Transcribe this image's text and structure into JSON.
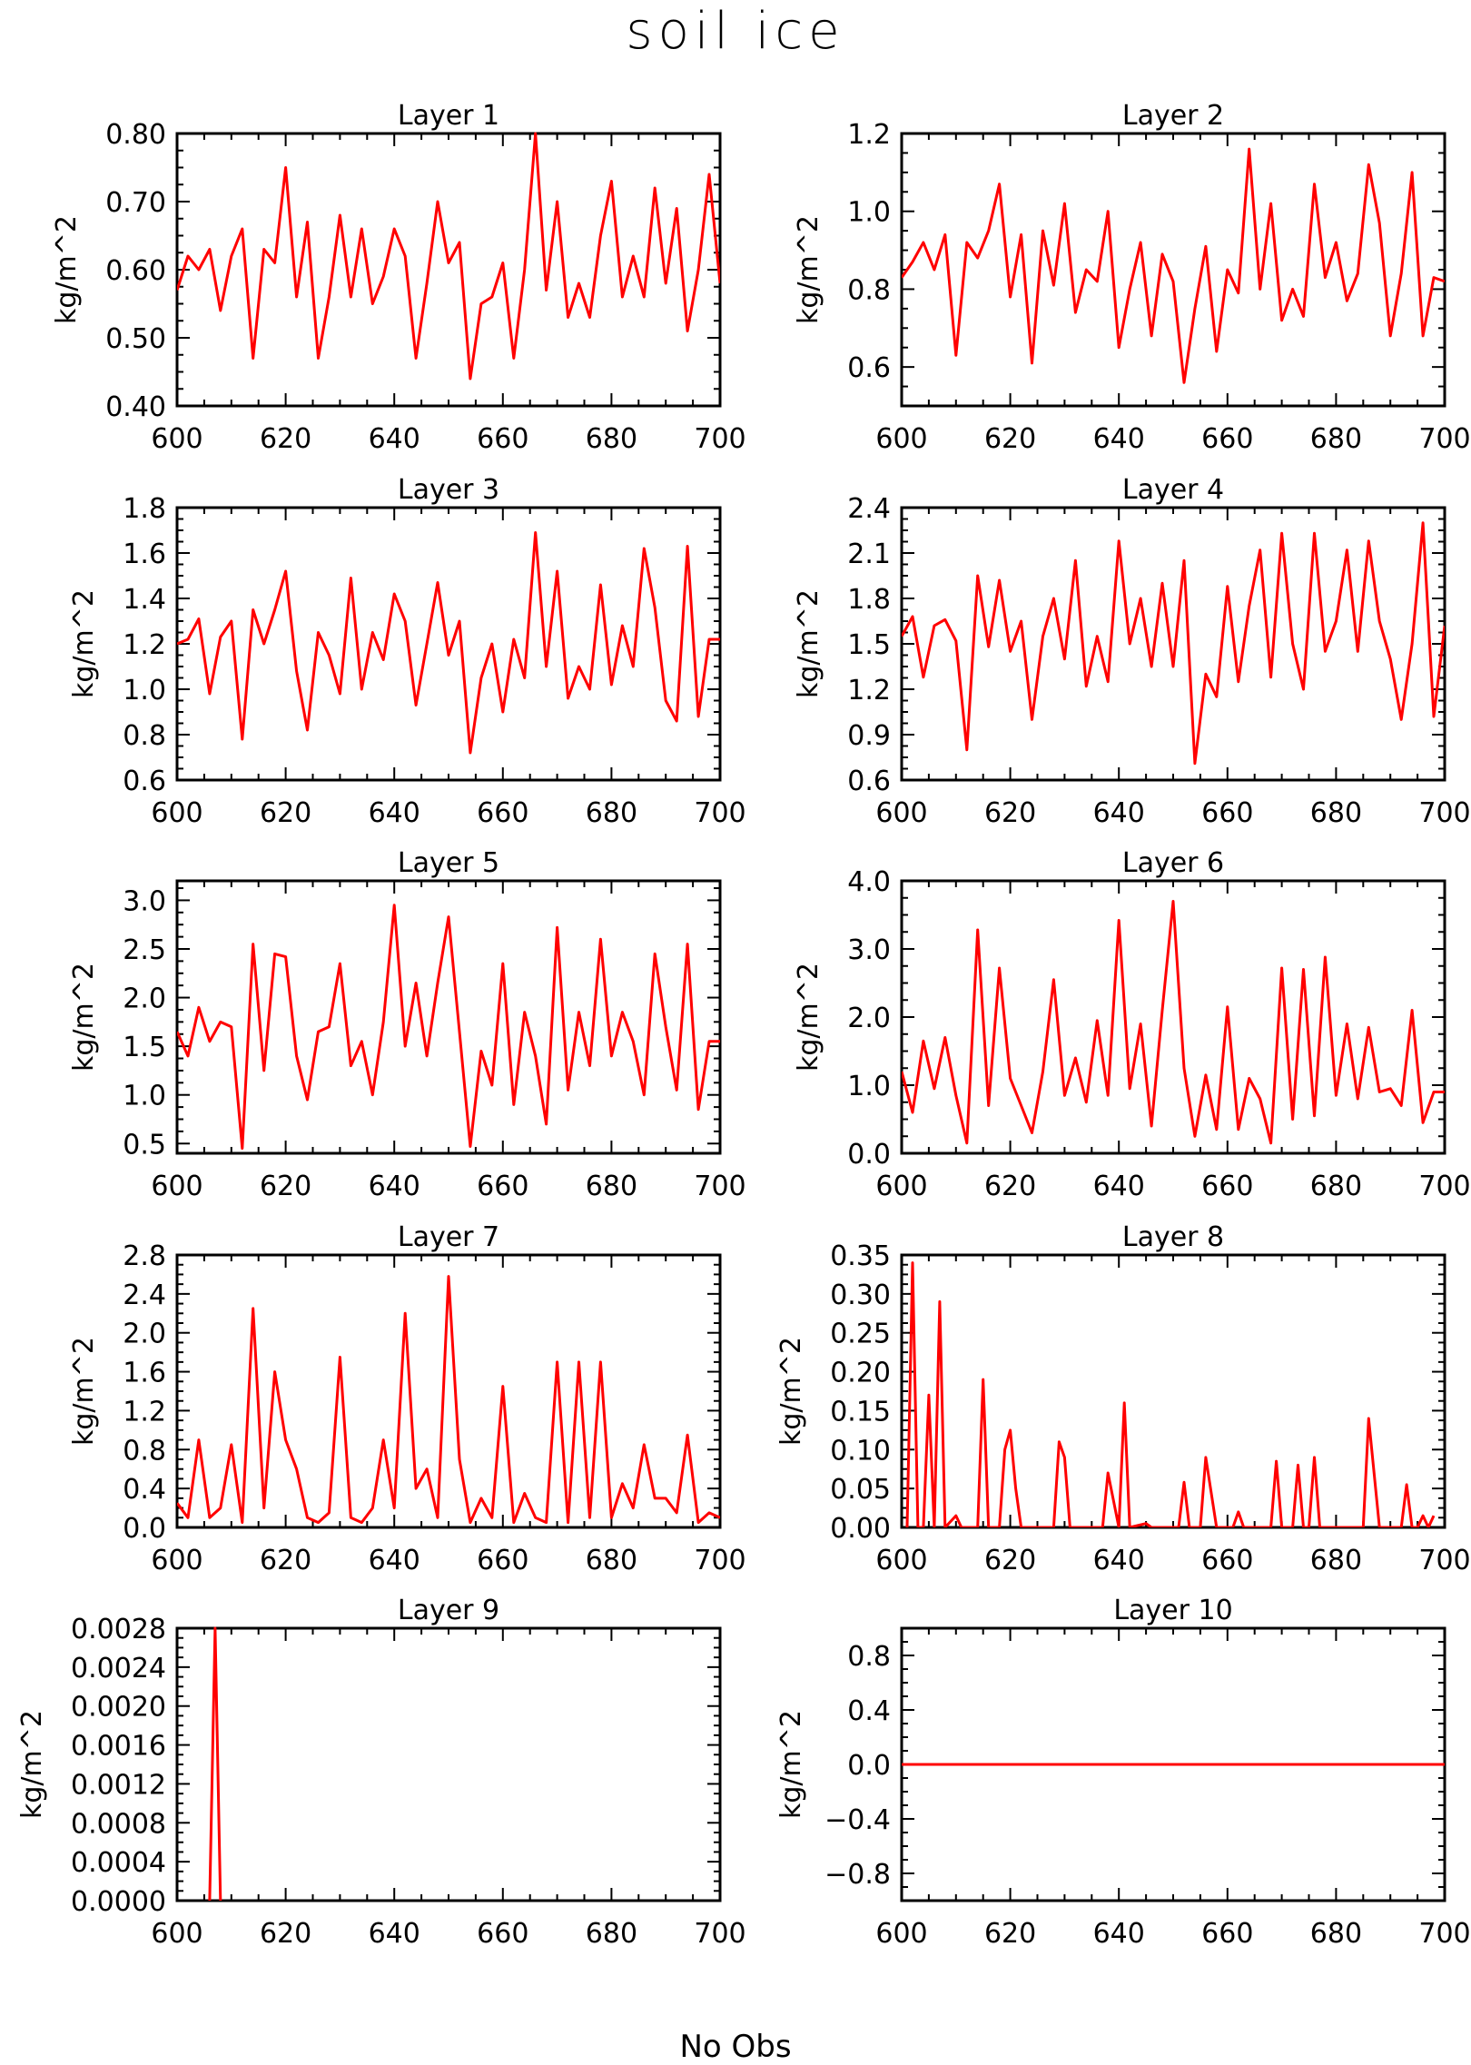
{
  "figure": {
    "title": "soil ice",
    "bottom_text": "No Obs"
  },
  "chart_data": [
    {
      "type": "line",
      "title": "Layer 1",
      "ylabel": "kg/m^2",
      "xlim": [
        600,
        700
      ],
      "ylim": [
        0.4,
        0.8
      ],
      "xticks": [
        "600",
        "620",
        "640",
        "660",
        "680",
        "700"
      ],
      "yticks": [
        "0.40",
        "0.50",
        "0.60",
        "0.70",
        "0.80"
      ],
      "ytick_values": [
        0.4,
        0.5,
        0.6,
        0.7,
        0.8
      ],
      "line_color": "#ff0000",
      "x": [
        600,
        602,
        604,
        606,
        608,
        610,
        612,
        614,
        616,
        618,
        620,
        622,
        624,
        626,
        628,
        630,
        632,
        634,
        636,
        638,
        640,
        642,
        644,
        646,
        648,
        650,
        652,
        654,
        656,
        658,
        660,
        662,
        664,
        666,
        668,
        670,
        672,
        674,
        676,
        678,
        680,
        682,
        684,
        686,
        688,
        690,
        692,
        694,
        696,
        698,
        700
      ],
      "values": [
        0.57,
        0.62,
        0.6,
        0.63,
        0.54,
        0.62,
        0.66,
        0.47,
        0.63,
        0.61,
        0.75,
        0.56,
        0.67,
        0.47,
        0.56,
        0.68,
        0.56,
        0.66,
        0.55,
        0.59,
        0.66,
        0.62,
        0.47,
        0.58,
        0.7,
        0.61,
        0.64,
        0.44,
        0.55,
        0.56,
        0.61,
        0.47,
        0.6,
        0.8,
        0.57,
        0.7,
        0.53,
        0.58,
        0.53,
        0.65,
        0.73,
        0.56,
        0.62,
        0.56,
        0.72,
        0.58,
        0.69,
        0.51,
        0.6,
        0.74,
        0.58
      ]
    },
    {
      "type": "line",
      "title": "Layer 2",
      "ylabel": "kg/m^2",
      "xlim": [
        600,
        700
      ],
      "ylim": [
        0.5,
        1.2
      ],
      "xticks": [
        "600",
        "620",
        "640",
        "660",
        "680",
        "700"
      ],
      "yticks": [
        "0.6",
        "0.8",
        "1.0",
        "1.2"
      ],
      "ytick_values": [
        0.6,
        0.8,
        1.0,
        1.2
      ],
      "line_color": "#ff0000",
      "x": [
        600,
        602,
        604,
        606,
        608,
        610,
        612,
        614,
        616,
        618,
        620,
        622,
        624,
        626,
        628,
        630,
        632,
        634,
        636,
        638,
        640,
        642,
        644,
        646,
        648,
        650,
        652,
        654,
        656,
        658,
        660,
        662,
        664,
        666,
        668,
        670,
        672,
        674,
        676,
        678,
        680,
        682,
        684,
        686,
        688,
        690,
        692,
        694,
        696,
        698,
        700
      ],
      "values": [
        0.83,
        0.87,
        0.92,
        0.85,
        0.94,
        0.63,
        0.92,
        0.88,
        0.95,
        1.07,
        0.78,
        0.94,
        0.61,
        0.95,
        0.81,
        1.02,
        0.74,
        0.85,
        0.82,
        1.0,
        0.65,
        0.8,
        0.92,
        0.68,
        0.89,
        0.82,
        0.56,
        0.75,
        0.91,
        0.64,
        0.85,
        0.79,
        1.16,
        0.8,
        1.02,
        0.72,
        0.8,
        0.73,
        1.07,
        0.83,
        0.92,
        0.77,
        0.84,
        1.12,
        0.97,
        0.68,
        0.84,
        1.1,
        0.68,
        0.83,
        0.82
      ]
    },
    {
      "type": "line",
      "title": "Layer 3",
      "ylabel": "kg/m^2",
      "xlim": [
        600,
        700
      ],
      "ylim": [
        0.6,
        1.8
      ],
      "xticks": [
        "600",
        "620",
        "640",
        "660",
        "680",
        "700"
      ],
      "yticks": [
        "0.6",
        "0.8",
        "1.0",
        "1.2",
        "1.4",
        "1.6",
        "1.8"
      ],
      "ytick_values": [
        0.6,
        0.8,
        1.0,
        1.2,
        1.4,
        1.6,
        1.8
      ],
      "line_color": "#ff0000",
      "x": [
        600,
        602,
        604,
        606,
        608,
        610,
        612,
        614,
        616,
        618,
        620,
        622,
        624,
        626,
        628,
        630,
        632,
        634,
        636,
        638,
        640,
        642,
        644,
        646,
        648,
        650,
        652,
        654,
        656,
        658,
        660,
        662,
        664,
        666,
        668,
        670,
        672,
        674,
        676,
        678,
        680,
        682,
        684,
        686,
        688,
        690,
        692,
        694,
        696,
        698,
        700
      ],
      "values": [
        1.2,
        1.22,
        1.31,
        0.98,
        1.23,
        1.3,
        0.78,
        1.35,
        1.2,
        1.35,
        1.52,
        1.08,
        0.82,
        1.25,
        1.15,
        0.98,
        1.49,
        1.0,
        1.25,
        1.13,
        1.42,
        1.3,
        0.93,
        1.2,
        1.47,
        1.15,
        1.3,
        0.72,
        1.05,
        1.2,
        0.9,
        1.22,
        1.05,
        1.69,
        1.1,
        1.52,
        0.96,
        1.1,
        1.0,
        1.46,
        1.02,
        1.28,
        1.1,
        1.62,
        1.36,
        0.95,
        0.86,
        1.63,
        0.88,
        1.22,
        1.22
      ]
    },
    {
      "type": "line",
      "title": "Layer 4",
      "ylabel": "kg/m^2",
      "xlim": [
        600,
        700
      ],
      "ylim": [
        0.6,
        2.4
      ],
      "xticks": [
        "600",
        "620",
        "640",
        "660",
        "680",
        "700"
      ],
      "yticks": [
        "0.6",
        "0.9",
        "1.2",
        "1.5",
        "1.8",
        "2.1",
        "2.4"
      ],
      "ytick_values": [
        0.6,
        0.9,
        1.2,
        1.5,
        1.8,
        2.1,
        2.4
      ],
      "line_color": "#ff0000",
      "x": [
        600,
        602,
        604,
        606,
        608,
        610,
        612,
        614,
        616,
        618,
        620,
        622,
        624,
        626,
        628,
        630,
        632,
        634,
        636,
        638,
        640,
        642,
        644,
        646,
        648,
        650,
        652,
        654,
        656,
        658,
        660,
        662,
        664,
        666,
        668,
        670,
        672,
        674,
        676,
        678,
        680,
        682,
        684,
        686,
        688,
        690,
        692,
        694,
        696,
        698,
        700
      ],
      "values": [
        1.55,
        1.68,
        1.28,
        1.62,
        1.66,
        1.52,
        0.8,
        1.95,
        1.48,
        1.92,
        1.45,
        1.65,
        1.0,
        1.55,
        1.8,
        1.4,
        2.05,
        1.22,
        1.55,
        1.25,
        2.18,
        1.5,
        1.8,
        1.35,
        1.9,
        1.35,
        2.05,
        0.71,
        1.3,
        1.15,
        1.88,
        1.25,
        1.75,
        2.12,
        1.28,
        2.23,
        1.5,
        1.2,
        2.23,
        1.45,
        1.65,
        2.12,
        1.45,
        2.18,
        1.65,
        1.4,
        1.0,
        1.5,
        2.3,
        1.02,
        1.62
      ]
    },
    {
      "type": "line",
      "title": "Layer 5",
      "ylabel": "kg/m^2",
      "xlim": [
        600,
        700
      ],
      "ylim": [
        0.4,
        3.2
      ],
      "xticks": [
        "600",
        "620",
        "640",
        "660",
        "680",
        "700"
      ],
      "yticks": [
        "0.5",
        "1.0",
        "1.5",
        "2.0",
        "2.5",
        "3.0"
      ],
      "ytick_values": [
        0.5,
        1.0,
        1.5,
        2.0,
        2.5,
        3.0
      ],
      "line_color": "#ff0000",
      "x": [
        600,
        602,
        604,
        606,
        608,
        610,
        612,
        614,
        616,
        618,
        620,
        622,
        624,
        626,
        628,
        630,
        632,
        634,
        636,
        638,
        640,
        642,
        644,
        646,
        648,
        650,
        652,
        654,
        656,
        658,
        660,
        662,
        664,
        666,
        668,
        670,
        672,
        674,
        676,
        678,
        680,
        682,
        684,
        686,
        688,
        690,
        692,
        694,
        696,
        698,
        700
      ],
      "values": [
        1.65,
        1.4,
        1.9,
        1.55,
        1.75,
        1.7,
        0.45,
        2.55,
        1.25,
        2.45,
        2.42,
        1.4,
        0.95,
        1.65,
        1.7,
        2.35,
        1.3,
        1.55,
        1.0,
        1.75,
        2.95,
        1.5,
        2.15,
        1.4,
        2.15,
        2.83,
        1.65,
        0.47,
        1.45,
        1.1,
        2.35,
        0.9,
        1.85,
        1.4,
        0.7,
        2.72,
        1.05,
        1.85,
        1.3,
        2.6,
        1.4,
        1.85,
        1.55,
        1.0,
        2.45,
        1.7,
        1.05,
        2.55,
        0.85,
        1.55,
        1.55
      ]
    },
    {
      "type": "line",
      "title": "Layer 6",
      "ylabel": "kg/m^2",
      "xlim": [
        600,
        700
      ],
      "ylim": [
        0.0,
        4.0
      ],
      "xticks": [
        "600",
        "620",
        "640",
        "660",
        "680",
        "700"
      ],
      "yticks": [
        "0.0",
        "1.0",
        "2.0",
        "3.0",
        "4.0"
      ],
      "ytick_values": [
        0.0,
        1.0,
        2.0,
        3.0,
        4.0
      ],
      "line_color": "#ff0000",
      "x": [
        600,
        602,
        604,
        606,
        608,
        610,
        612,
        614,
        616,
        618,
        620,
        622,
        624,
        626,
        628,
        630,
        632,
        634,
        636,
        638,
        640,
        642,
        644,
        646,
        648,
        650,
        652,
        654,
        656,
        658,
        660,
        662,
        664,
        666,
        668,
        670,
        672,
        674,
        676,
        678,
        680,
        682,
        684,
        686,
        688,
        690,
        692,
        694,
        696,
        698,
        700
      ],
      "values": [
        1.2,
        0.6,
        1.65,
        0.95,
        1.7,
        0.85,
        0.15,
        3.28,
        0.7,
        2.72,
        1.1,
        0.7,
        0.3,
        1.2,
        2.55,
        0.85,
        1.4,
        0.75,
        1.95,
        0.85,
        3.42,
        0.95,
        1.9,
        0.4,
        2.1,
        3.7,
        1.25,
        0.25,
        1.15,
        0.35,
        2.15,
        0.35,
        1.1,
        0.8,
        0.15,
        2.72,
        0.5,
        2.7,
        0.55,
        2.88,
        0.85,
        1.9,
        0.8,
        1.85,
        0.9,
        0.95,
        0.7,
        2.1,
        0.45,
        0.9,
        0.9
      ]
    },
    {
      "type": "line",
      "title": "Layer 7",
      "ylabel": "kg/m^2",
      "xlim": [
        600,
        700
      ],
      "ylim": [
        0.0,
        2.8
      ],
      "xticks": [
        "600",
        "620",
        "640",
        "660",
        "680",
        "700"
      ],
      "yticks": [
        "0.0",
        "0.4",
        "0.8",
        "1.2",
        "1.6",
        "2.0",
        "2.4",
        "2.8"
      ],
      "ytick_values": [
        0.0,
        0.4,
        0.8,
        1.2,
        1.6,
        2.0,
        2.4,
        2.8
      ],
      "line_color": "#ff0000",
      "x": [
        600,
        602,
        604,
        606,
        608,
        610,
        612,
        614,
        616,
        618,
        620,
        622,
        624,
        626,
        628,
        630,
        632,
        634,
        636,
        638,
        640,
        642,
        644,
        646,
        648,
        650,
        652,
        654,
        656,
        658,
        660,
        662,
        664,
        666,
        668,
        670,
        672,
        674,
        676,
        678,
        680,
        682,
        684,
        686,
        688,
        690,
        692,
        694,
        696,
        698,
        700
      ],
      "values": [
        0.25,
        0.1,
        0.9,
        0.1,
        0.2,
        0.85,
        0.05,
        2.25,
        0.2,
        1.6,
        0.9,
        0.6,
        0.1,
        0.05,
        0.15,
        1.75,
        0.1,
        0.05,
        0.2,
        0.9,
        0.2,
        2.2,
        0.4,
        0.6,
        0.1,
        2.58,
        0.7,
        0.05,
        0.3,
        0.1,
        1.45,
        0.05,
        0.35,
        0.1,
        0.05,
        1.7,
        0.05,
        1.7,
        0.1,
        1.7,
        0.1,
        0.45,
        0.2,
        0.85,
        0.3,
        0.3,
        0.15,
        0.95,
        0.05,
        0.15,
        0.1
      ]
    },
    {
      "type": "line",
      "title": "Layer 8",
      "ylabel": "kg/m^2",
      "xlim": [
        600,
        700
      ],
      "ylim": [
        0.0,
        0.35
      ],
      "xticks": [
        "600",
        "620",
        "640",
        "660",
        "680",
        "700"
      ],
      "yticks": [
        "0.00",
        "0.05",
        "0.10",
        "0.15",
        "0.20",
        "0.25",
        "0.30",
        "0.35"
      ],
      "ytick_values": [
        0.0,
        0.05,
        0.1,
        0.15,
        0.2,
        0.25,
        0.3,
        0.35
      ],
      "line_color": "#ff0000",
      "x": [
        601,
        602,
        603,
        604,
        605,
        606,
        607,
        608,
        610,
        611,
        614,
        615,
        616,
        618,
        619,
        620,
        621,
        622,
        623,
        624,
        628,
        629,
        630,
        631,
        637,
        638,
        640,
        641,
        642,
        645,
        646,
        647,
        650,
        651,
        652,
        653,
        655,
        656,
        658,
        659,
        660,
        661,
        662,
        663,
        664,
        668,
        669,
        670,
        672,
        673,
        674,
        675,
        676,
        677,
        678,
        682,
        684,
        685,
        686,
        688,
        689,
        692,
        693,
        694,
        695,
        696,
        697,
        698
      ],
      "values": [
        0.0,
        0.34,
        0.0,
        0.0,
        0.17,
        0.0,
        0.29,
        0.0,
        0.015,
        0.0,
        0.0,
        0.19,
        0.0,
        0.0,
        0.1,
        0.125,
        0.05,
        0.0,
        0.0,
        0.0,
        0.0,
        0.11,
        0.09,
        0.0,
        0.0,
        0.07,
        0.0,
        0.16,
        0.0,
        0.005,
        0.0,
        0.0,
        0.0,
        0.0,
        0.058,
        0.0,
        0.0,
        0.09,
        0.0,
        0.0,
        0.0,
        0.0,
        0.02,
        0.0,
        0.0,
        0.0,
        0.085,
        0.0,
        0.0,
        0.08,
        0.0,
        0.0,
        0.09,
        0.0,
        0.0,
        0.0,
        0.0,
        0.0,
        0.14,
        0.0,
        0.0,
        0.0,
        0.055,
        0.0,
        0.0,
        0.015,
        0.0,
        0.015
      ]
    },
    {
      "type": "line",
      "title": "Layer 9",
      "ylabel": "kg/m^2",
      "xlim": [
        600,
        700
      ],
      "ylim": [
        0.0,
        0.0028
      ],
      "xticks": [
        "600",
        "620",
        "640",
        "660",
        "680",
        "700"
      ],
      "yticks": [
        "0.0000",
        "0.0004",
        "0.0008",
        "0.0012",
        "0.0016",
        "0.0020",
        "0.0024",
        "0.0028"
      ],
      "ytick_values": [
        0.0,
        0.0004,
        0.0008,
        0.0012,
        0.0016,
        0.002,
        0.0024,
        0.0028
      ],
      "line_color": "#ff0000",
      "x": [
        606,
        607,
        608
      ],
      "values": [
        0.0,
        0.0028,
        0.0
      ]
    },
    {
      "type": "line",
      "title": "Layer 10",
      "ylabel": "kg/m^2",
      "xlim": [
        600,
        700
      ],
      "ylim": [
        -1.0,
        1.0
      ],
      "xticks": [
        "600",
        "620",
        "640",
        "660",
        "680",
        "700"
      ],
      "yticks": [
        "−0.8",
        "−0.4",
        "0.0",
        "0.4",
        "0.8"
      ],
      "ytick_values": [
        -0.8,
        -0.4,
        0.0,
        0.4,
        0.8
      ],
      "line_color": "#ff0000",
      "x": [
        600,
        700
      ],
      "values": [
        0.0,
        0.0
      ]
    }
  ]
}
